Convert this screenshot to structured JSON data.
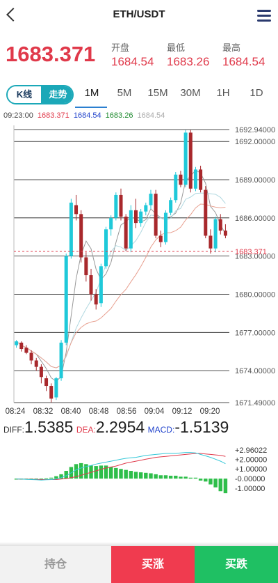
{
  "header": {
    "title": "ETH/USDT"
  },
  "ticker": {
    "last": "1683.371",
    "open_label": "开盘",
    "open": "1684.54",
    "low_label": "最低",
    "low": "1683.26",
    "high_label": "最高",
    "high": "1684.54"
  },
  "chart_tabs": {
    "kline": "K线",
    "trend": "走势",
    "periods": [
      "1M",
      "5M",
      "15M",
      "30M",
      "1H",
      "1D"
    ],
    "active_period": "1M"
  },
  "ma_legend": {
    "time": "09:23:00",
    "values": [
      {
        "text": "1683.371",
        "color": "#e0394a"
      },
      {
        "text": "1684.54",
        "color": "#2244cc"
      },
      {
        "text": "1683.26",
        "color": "#1e8a2e"
      },
      {
        "text": "1684.54",
        "color": "#aaaaaa"
      }
    ]
  },
  "colors": {
    "up": "#1fc9d9",
    "down": "#a8282c",
    "accent": "#1ba8b8",
    "red": "#e0394a",
    "green": "#1fc063"
  },
  "chart_data": [
    {
      "type": "candlestick",
      "y_ticks": [
        "1692.94000",
        "1692.00000",
        "1689.00000",
        "1686.00000",
        "1683.00000",
        "1680.00000",
        "1677.00000",
        "1674.00000",
        "1671.49000"
      ],
      "y_tick_values": [
        1692.94,
        1692.0,
        1689.0,
        1686.0,
        1683.0,
        1680.0,
        1677.0,
        1674.0,
        1671.49
      ],
      "ylim": [
        1671.49,
        1692.94
      ],
      "x_ticks": [
        "08:24",
        "08:32",
        "08:40",
        "08:48",
        "08:56",
        "09:04",
        "09:12",
        "09:20"
      ],
      "current_price_label": "1683.371",
      "current_price": 1683.371,
      "candles": [
        [
          1676.0,
          1676.4,
          1675.8,
          1676.3
        ],
        [
          1676.2,
          1676.3,
          1675.5,
          1675.7
        ],
        [
          1675.8,
          1676.0,
          1675.3,
          1675.4
        ],
        [
          1675.4,
          1675.6,
          1674.5,
          1674.8
        ],
        [
          1674.8,
          1675.0,
          1674.0,
          1674.3
        ],
        [
          1674.3,
          1674.5,
          1673.0,
          1673.5
        ],
        [
          1673.4,
          1673.6,
          1672.4,
          1672.8
        ],
        [
          1672.8,
          1673.0,
          1671.5,
          1671.8
        ],
        [
          1671.9,
          1673.5,
          1671.7,
          1673.4
        ],
        [
          1673.4,
          1676.4,
          1673.2,
          1676.2
        ],
        [
          1676.2,
          1683.2,
          1676.0,
          1683.0
        ],
        [
          1683.0,
          1687.5,
          1682.8,
          1687.2
        ],
        [
          1687.0,
          1687.8,
          1685.8,
          1686.3
        ],
        [
          1686.3,
          1686.6,
          1682.5,
          1682.9
        ],
        [
          1682.9,
          1683.3,
          1681.0,
          1681.5
        ],
        [
          1681.5,
          1682.0,
          1679.5,
          1680.0
        ],
        [
          1680.0,
          1680.4,
          1678.8,
          1679.2
        ],
        [
          1679.3,
          1682.4,
          1679.0,
          1682.2
        ],
        [
          1682.2,
          1685.3,
          1682.0,
          1685.1
        ],
        [
          1685.1,
          1686.2,
          1684.6,
          1686.0
        ],
        [
          1686.0,
          1688.0,
          1685.8,
          1687.8
        ],
        [
          1687.8,
          1688.3,
          1685.8,
          1686.1
        ],
        [
          1686.1,
          1686.3,
          1683.4,
          1683.6
        ],
        [
          1683.6,
          1687.0,
          1683.3,
          1686.6
        ],
        [
          1686.6,
          1687.5,
          1685.2,
          1685.6
        ],
        [
          1685.6,
          1686.7,
          1685.3,
          1686.5
        ],
        [
          1686.5,
          1687.2,
          1686.2,
          1687.0
        ],
        [
          1687.0,
          1688.2,
          1686.7,
          1687.9
        ],
        [
          1687.9,
          1688.2,
          1684.4,
          1684.6
        ],
        [
          1684.6,
          1685.0,
          1683.7,
          1684.1
        ],
        [
          1684.1,
          1686.6,
          1683.9,
          1686.4
        ],
        [
          1686.4,
          1687.6,
          1686.2,
          1687.4
        ],
        [
          1687.4,
          1689.6,
          1687.2,
          1689.4
        ],
        [
          1689.4,
          1689.7,
          1688.4,
          1688.6
        ],
        [
          1688.6,
          1692.9,
          1688.4,
          1692.7
        ],
        [
          1692.7,
          1692.9,
          1688.0,
          1688.3
        ],
        [
          1688.3,
          1690.0,
          1688.1,
          1689.8
        ],
        [
          1689.8,
          1690.1,
          1688.0,
          1688.2
        ],
        [
          1688.2,
          1688.5,
          1684.4,
          1684.6
        ],
        [
          1684.6,
          1685.1,
          1683.2,
          1683.6
        ],
        [
          1683.6,
          1686.1,
          1683.3,
          1685.9
        ],
        [
          1685.9,
          1686.3,
          1684.7,
          1685.0
        ],
        [
          1685.0,
          1685.5,
          1684.4,
          1684.6
        ]
      ]
    },
    {
      "type": "bar+line",
      "labels": {
        "diff_label": "DIFF:",
        "diff": "1.5385",
        "dea_label": "DEA:",
        "dea": "2.2954",
        "macd_label": "MACD:",
        "macd": "-1.5139"
      },
      "y_ticks": [
        "+2.96022",
        "+2.00000",
        "+1.00000",
        "-0.00000",
        "-1.00000"
      ],
      "y_tick_values": [
        2.96022,
        2.0,
        1.0,
        0.0,
        -1.0
      ],
      "ylim": [
        -1.5,
        2.96022
      ],
      "macd_bars": [
        -0.1,
        -0.1,
        -0.05,
        -0.05,
        0.0,
        0.0,
        0.05,
        0.1,
        0.25,
        0.45,
        0.8,
        1.2,
        1.5,
        1.6,
        1.5,
        1.35,
        1.3,
        1.35,
        1.35,
        1.2,
        1.1,
        1.0,
        0.9,
        0.8,
        0.7,
        0.65,
        0.6,
        0.55,
        0.45,
        0.35,
        0.35,
        0.3,
        0.3,
        0.2,
        0.2,
        0.1,
        0.1,
        -0.2,
        -0.3,
        -0.6,
        -0.9,
        -1.3,
        -1.51
      ],
      "diff_line": [
        -0.05,
        -0.05,
        -0.08,
        -0.1,
        -0.12,
        -0.15,
        -0.12,
        -0.1,
        -0.05,
        0.1,
        0.3,
        0.6,
        0.9,
        1.1,
        1.25,
        1.35,
        1.5,
        1.6,
        1.7,
        1.8,
        1.9,
        2.0,
        2.1,
        2.15,
        2.2,
        2.3,
        2.4,
        2.45,
        2.5,
        2.55,
        2.6,
        2.6,
        2.6,
        2.65,
        2.7,
        2.7,
        2.65,
        2.5,
        2.35,
        2.2,
        2.0,
        1.8,
        1.54
      ],
      "dea_line": [
        -0.05,
        -0.05,
        -0.06,
        -0.07,
        -0.08,
        -0.1,
        -0.1,
        -0.1,
        -0.1,
        -0.05,
        0.0,
        0.1,
        0.2,
        0.35,
        0.5,
        0.65,
        0.8,
        0.95,
        1.1,
        1.2,
        1.3,
        1.45,
        1.6,
        1.7,
        1.8,
        1.9,
        2.0,
        2.1,
        2.2,
        2.25,
        2.3,
        2.35,
        2.4,
        2.45,
        2.5,
        2.55,
        2.6,
        2.6,
        2.55,
        2.5,
        2.45,
        2.4,
        2.3
      ]
    }
  ],
  "actions": {
    "hold": "持仓",
    "buy_up": "买涨",
    "buy_down": "买跌"
  }
}
